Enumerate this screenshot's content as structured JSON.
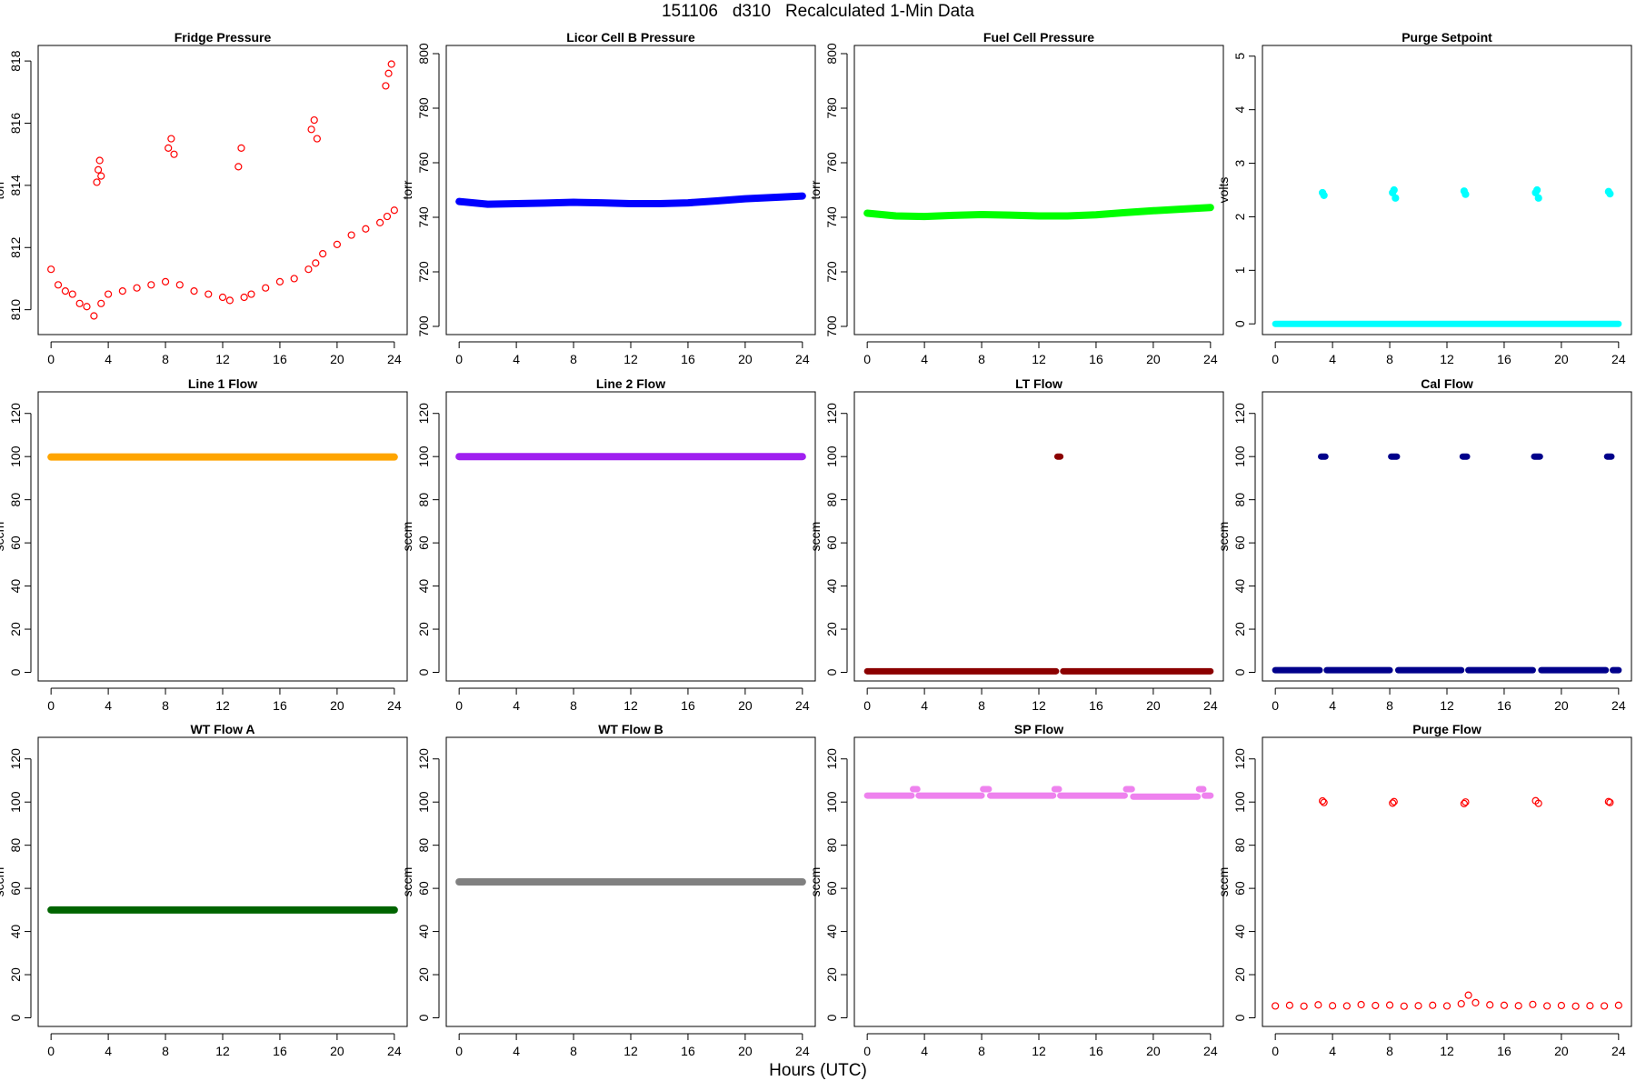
{
  "figure": {
    "title": {
      "date": "151106",
      "day": "d310",
      "subtitle": "Recalculated 1-Min Data"
    },
    "xlabel": "Hours (UTC)"
  },
  "chart_data": [
    {
      "type": "scatter",
      "title": "Fridge Pressure",
      "ylabel": "torr",
      "ylim": [
        809.2,
        818.5
      ],
      "yticks": [
        810,
        812,
        814,
        816,
        818
      ],
      "xlim": [
        -0.9,
        24.9
      ],
      "xticks": [
        0,
        4,
        8,
        12,
        16,
        20,
        24
      ],
      "color": "#ff0000",
      "marker": "open",
      "series": [
        {
          "name": "",
          "x": [
            0,
            0.5,
            1,
            1.5,
            2,
            2.5,
            3,
            3.5,
            4,
            5,
            6,
            7,
            8,
            9,
            10,
            11,
            12,
            12.5,
            13.5,
            14,
            15,
            16,
            17,
            18,
            18.5,
            19,
            20,
            21,
            22,
            23,
            23.5,
            24
          ],
          "y": [
            811.3,
            810.8,
            810.6,
            810.5,
            810.2,
            810.1,
            809.8,
            810.2,
            810.5,
            810.6,
            810.7,
            810.8,
            810.9,
            810.8,
            810.6,
            810.5,
            810.4,
            810.3,
            810.4,
            810.5,
            810.7,
            810.9,
            811.0,
            811.3,
            811.5,
            811.8,
            812.1,
            812.4,
            812.6,
            812.8,
            813.0,
            813.2
          ]
        },
        {
          "name": "",
          "x": [
            3.2,
            3.3,
            3.4,
            3.5,
            8.2,
            8.4,
            8.6,
            13.1,
            13.3,
            18.2,
            18.4,
            18.6,
            23.4,
            23.6,
            23.8
          ],
          "y": [
            814.1,
            814.5,
            814.8,
            814.3,
            815.2,
            815.5,
            815.0,
            814.6,
            815.2,
            815.8,
            816.1,
            815.5,
            817.2,
            817.6,
            817.9
          ]
        }
      ]
    },
    {
      "type": "line",
      "title": "Licor Cell B Pressure",
      "ylabel": "torr",
      "ylim": [
        697,
        803
      ],
      "yticks": [
        700,
        720,
        740,
        760,
        780,
        800
      ],
      "xlim": [
        -0.9,
        24.9
      ],
      "xticks": [
        0,
        4,
        8,
        12,
        16,
        20,
        24
      ],
      "color": "#0000ff",
      "x": [
        0,
        2,
        4,
        6,
        8,
        10,
        12,
        14,
        16,
        18,
        20,
        22,
        24
      ],
      "y": [
        745.8,
        744.8,
        745.0,
        745.2,
        745.5,
        745.3,
        745.0,
        745.0,
        745.3,
        746.0,
        746.8,
        747.3,
        747.8
      ]
    },
    {
      "type": "line",
      "title": "Fuel Cell Pressure",
      "ylabel": "torr",
      "ylim": [
        697,
        803
      ],
      "yticks": [
        700,
        720,
        740,
        760,
        780,
        800
      ],
      "xlim": [
        -0.9,
        24.9
      ],
      "xticks": [
        0,
        4,
        8,
        12,
        16,
        20,
        24
      ],
      "color": "#00ff00",
      "x": [
        0,
        2,
        4,
        6,
        8,
        10,
        12,
        14,
        16,
        18,
        20,
        22,
        24
      ],
      "y": [
        741.5,
        740.5,
        740.3,
        740.7,
        741.0,
        740.8,
        740.5,
        740.5,
        740.9,
        741.7,
        742.4,
        743.0,
        743.6
      ]
    },
    {
      "type": "scatter",
      "title": "Purge Setpoint",
      "ylabel": "volts",
      "ylim": [
        -0.2,
        5.2
      ],
      "yticks": [
        0,
        1,
        2,
        3,
        4,
        5
      ],
      "xlim": [
        -0.9,
        24.9
      ],
      "xticks": [
        0,
        4,
        8,
        12,
        16,
        20,
        24
      ],
      "color": "#00ffff",
      "series": [
        {
          "name": "",
          "x": [
            0,
            24
          ],
          "y": [
            0,
            0
          ]
        },
        {
          "name": "",
          "x": [
            3.3,
            3.4,
            8.2,
            8.3,
            8.4,
            13.2,
            13.3,
            18.2,
            18.3,
            18.4,
            23.3,
            23.4
          ],
          "y": [
            2.45,
            2.4,
            2.45,
            2.5,
            2.35,
            2.48,
            2.42,
            2.45,
            2.5,
            2.35,
            2.47,
            2.43
          ]
        }
      ]
    },
    {
      "type": "line",
      "title": "Line 1 Flow",
      "ylabel": "sccm",
      "ylim": [
        -4,
        130
      ],
      "yticks": [
        0,
        20,
        40,
        60,
        80,
        100,
        120
      ],
      "xlim": [
        -0.9,
        24.9
      ],
      "xticks": [
        0,
        4,
        8,
        12,
        16,
        20,
        24
      ],
      "color": "#ffa500",
      "x": [
        0,
        24
      ],
      "y": [
        99.8,
        99.8
      ]
    },
    {
      "type": "line",
      "title": "Line 2 Flow",
      "ylabel": "sccm",
      "ylim": [
        -4,
        130
      ],
      "yticks": [
        0,
        20,
        40,
        60,
        80,
        100,
        120
      ],
      "xlim": [
        -0.9,
        24.9
      ],
      "xticks": [
        0,
        4,
        8,
        12,
        16,
        20,
        24
      ],
      "color": "#a020f0",
      "x": [
        0,
        24
      ],
      "y": [
        100,
        100
      ]
    },
    {
      "type": "scatter",
      "title": "LT Flow",
      "ylabel": "sccm",
      "ylim": [
        -4,
        130
      ],
      "yticks": [
        0,
        20,
        40,
        60,
        80,
        100,
        120
      ],
      "xlim": [
        -0.9,
        24.9
      ],
      "xticks": [
        0,
        4,
        8,
        12,
        16,
        20,
        24
      ],
      "color": "#8b0000",
      "series": [
        {
          "name": "",
          "x": [
            0,
            13.2
          ],
          "y": [
            0.5,
            0.5
          ]
        },
        {
          "name": "",
          "x": [
            13.7,
            24
          ],
          "y": [
            0.5,
            0.5
          ]
        },
        {
          "name": "",
          "x": [
            13.3,
            13.5
          ],
          "y": [
            100,
            100
          ]
        }
      ]
    },
    {
      "type": "scatter",
      "title": "Cal Flow",
      "ylabel": "sccm",
      "ylim": [
        -4,
        130
      ],
      "yticks": [
        0,
        20,
        40,
        60,
        80,
        100,
        120
      ],
      "xlim": [
        -0.9,
        24.9
      ],
      "xticks": [
        0,
        4,
        8,
        12,
        16,
        20,
        24
      ],
      "color": "#00008b",
      "series": [
        {
          "name": "",
          "x": [
            0,
            3.1
          ],
          "y": [
            1,
            1
          ]
        },
        {
          "name": "",
          "x": [
            3.6,
            8.0
          ],
          "y": [
            1,
            1
          ]
        },
        {
          "name": "",
          "x": [
            8.6,
            13.0
          ],
          "y": [
            1,
            1
          ]
        },
        {
          "name": "",
          "x": [
            13.5,
            18.0
          ],
          "y": [
            1,
            1
          ]
        },
        {
          "name": "",
          "x": [
            18.6,
            23.1
          ],
          "y": [
            1,
            1
          ]
        },
        {
          "name": "",
          "x": [
            23.6,
            24
          ],
          "y": [
            1,
            1
          ]
        },
        {
          "name": "",
          "x": [
            3.2,
            3.5
          ],
          "y": [
            100,
            100
          ]
        },
        {
          "name": "",
          "x": [
            8.1,
            8.5
          ],
          "y": [
            100,
            100
          ]
        },
        {
          "name": "",
          "x": [
            13.1,
            13.4
          ],
          "y": [
            100,
            100
          ]
        },
        {
          "name": "",
          "x": [
            18.1,
            18.5
          ],
          "y": [
            100,
            100
          ]
        },
        {
          "name": "",
          "x": [
            23.2,
            23.5
          ],
          "y": [
            100,
            100
          ]
        }
      ]
    },
    {
      "type": "line",
      "title": "WT Flow A",
      "ylabel": "sccm",
      "ylim": [
        -4,
        130
      ],
      "yticks": [
        0,
        20,
        40,
        60,
        80,
        100,
        120
      ],
      "xlim": [
        -0.9,
        24.9
      ],
      "xticks": [
        0,
        4,
        8,
        12,
        16,
        20,
        24
      ],
      "color": "#006400",
      "x": [
        0,
        24
      ],
      "y": [
        50,
        50
      ]
    },
    {
      "type": "line",
      "title": "WT Flow B",
      "ylabel": "sccm",
      "ylim": [
        -4,
        130
      ],
      "yticks": [
        0,
        20,
        40,
        60,
        80,
        100,
        120
      ],
      "xlim": [
        -0.9,
        24.9
      ],
      "xticks": [
        0,
        4,
        8,
        12,
        16,
        20,
        24
      ],
      "color": "#808080",
      "x": [
        0,
        24
      ],
      "y": [
        63,
        63
      ]
    },
    {
      "type": "scatter",
      "title": "SP Flow",
      "ylabel": "sccm",
      "ylim": [
        -4,
        130
      ],
      "yticks": [
        0,
        20,
        40,
        60,
        80,
        100,
        120
      ],
      "xlim": [
        -0.9,
        24.9
      ],
      "xticks": [
        0,
        4,
        8,
        12,
        16,
        20,
        24
      ],
      "color": "#ee82ee",
      "series": [
        {
          "name": "",
          "x": [
            0,
            3.1
          ],
          "y": [
            103,
            103
          ]
        },
        {
          "name": "",
          "x": [
            3.6,
            8.0
          ],
          "y": [
            103,
            103
          ]
        },
        {
          "name": "",
          "x": [
            8.6,
            13.0
          ],
          "y": [
            103,
            103
          ]
        },
        {
          "name": "",
          "x": [
            13.5,
            18.0
          ],
          "y": [
            103,
            103
          ]
        },
        {
          "name": "",
          "x": [
            18.6,
            23.1
          ],
          "y": [
            102.5,
            102.5
          ]
        },
        {
          "name": "",
          "x": [
            23.6,
            24
          ],
          "y": [
            103,
            103
          ]
        },
        {
          "name": "",
          "x": [
            3.2,
            3.5
          ],
          "y": [
            106,
            106
          ]
        },
        {
          "name": "",
          "x": [
            8.1,
            8.5
          ],
          "y": [
            106,
            106
          ]
        },
        {
          "name": "",
          "x": [
            13.1,
            13.4
          ],
          "y": [
            106,
            106
          ]
        },
        {
          "name": "",
          "x": [
            18.1,
            18.5
          ],
          "y": [
            106,
            106
          ]
        },
        {
          "name": "",
          "x": [
            23.2,
            23.5
          ],
          "y": [
            106,
            106
          ]
        }
      ]
    },
    {
      "type": "scatter",
      "title": "Purge Flow",
      "ylabel": "sccm",
      "ylim": [
        -4,
        130
      ],
      "yticks": [
        0,
        20,
        40,
        60,
        80,
        100,
        120
      ],
      "xlim": [
        -0.9,
        24.9
      ],
      "xticks": [
        0,
        4,
        8,
        12,
        16,
        20,
        24
      ],
      "color": "#ff0000",
      "marker": "open",
      "series": [
        {
          "name": "",
          "x": [
            0,
            1,
            2,
            3,
            4,
            5,
            6,
            7,
            8,
            9,
            10,
            11,
            12,
            13,
            13.5,
            14,
            15,
            16,
            17,
            18,
            19,
            20,
            21,
            22,
            23,
            24
          ],
          "y": [
            5.5,
            5.8,
            5.4,
            6.0,
            5.6,
            5.5,
            6.1,
            5.7,
            5.9,
            5.4,
            5.6,
            5.8,
            5.5,
            6.5,
            10.5,
            7.0,
            6.0,
            5.8,
            5.6,
            6.2,
            5.5,
            5.7,
            5.4,
            5.6,
            5.5,
            5.8
          ]
        },
        {
          "name": "",
          "x": [
            3.3,
            3.4,
            8.2,
            8.3,
            13.2,
            13.3,
            18.2,
            18.4,
            23.3,
            23.4
          ],
          "y": [
            100.5,
            99.8,
            99.5,
            100.2,
            99.3,
            100,
            100.6,
            99.4,
            100.2,
            99.8
          ]
        }
      ]
    }
  ]
}
